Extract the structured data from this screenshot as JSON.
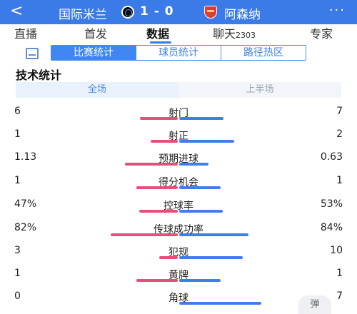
{
  "header": {
    "back_glyph": "<",
    "home_team": "国际米兰",
    "home_logo": "inter-logo",
    "score": "1 - 0",
    "away_logo": "arsenal-logo",
    "away_team": "阿森纳",
    "more_glyph": "···",
    "background": "#3a7be8"
  },
  "tabs": [
    {
      "label": "直播",
      "count": ""
    },
    {
      "label": "首发",
      "count": ""
    },
    {
      "label": "数据",
      "count": ""
    },
    {
      "label": "聊天",
      "count": "2303"
    },
    {
      "label": "专家",
      "count": ""
    }
  ],
  "active_tab": "数据",
  "subtabs": [
    "比赛统计",
    "球员统计",
    "路径热区"
  ],
  "active_subtab": "比赛统计",
  "section_title": "技术统计",
  "period": {
    "full": "全场",
    "first_half": "上半场",
    "active": "全场"
  },
  "stats": [
    {
      "label": "射门",
      "home": "6",
      "away": "7",
      "home_share": 0.46,
      "away_share": 0.54
    },
    {
      "label": "射正",
      "home": "1",
      "away": "2",
      "home_share": 0.33,
      "away_share": 0.67
    },
    {
      "label": "预期进球",
      "home": "1.13",
      "away": "0.63",
      "home_share": 0.64,
      "away_share": 0.36
    },
    {
      "label": "得分机会",
      "home": "1",
      "away": "1",
      "home_share": 0.5,
      "away_share": 0.5
    },
    {
      "label": "控球率",
      "home": "47%",
      "away": "53%",
      "home_share": 0.47,
      "away_share": 0.53
    },
    {
      "label": "传球成功率",
      "home": "82%",
      "away": "84%",
      "home_share": 0.82,
      "away_share": 0.84
    },
    {
      "label": "犯规",
      "home": "3",
      "away": "10",
      "home_share": 0.23,
      "away_share": 0.77
    },
    {
      "label": "黄牌",
      "home": "1",
      "away": "1",
      "home_share": 0.5,
      "away_share": 0.5
    },
    {
      "label": "角球",
      "home": "0",
      "away": "7",
      "home_share": 0.0,
      "away_share": 1.0
    }
  ],
  "float_button": "弹",
  "colors": {
    "home_bar": "#e94d7b",
    "away_bar": "#3f7ee8",
    "accent": "#3f86f2"
  }
}
